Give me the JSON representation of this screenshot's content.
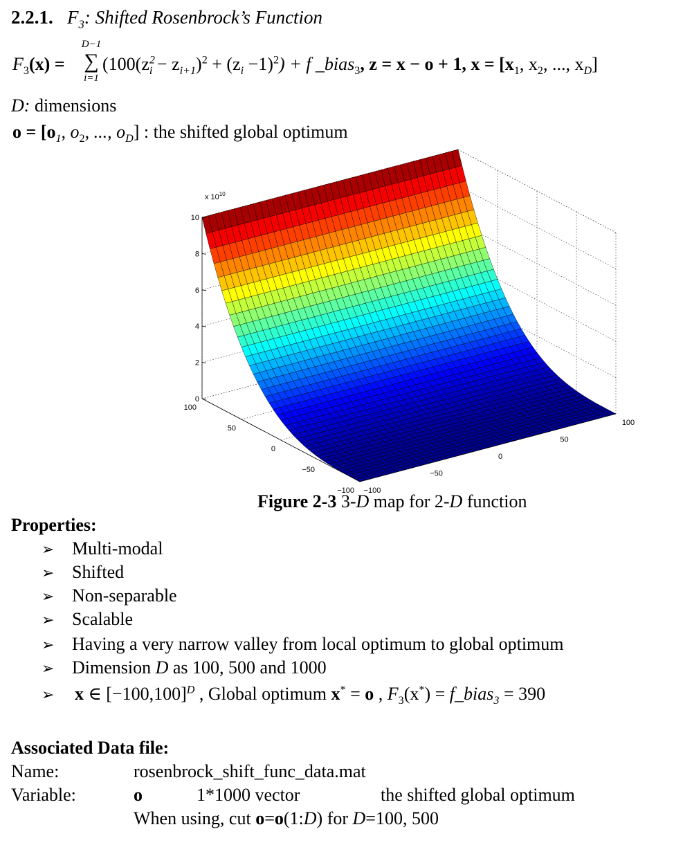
{
  "section": {
    "number": "2.2.1.",
    "func_sym": "F",
    "func_sub": "3",
    "title_rest": ": Shifted Rosenbrock’s Function"
  },
  "formula": {
    "lhs": "F",
    "lhs_sub": "3",
    "lhs_arg": "(x) =",
    "sum_upper": "D−1",
    "sum_lower": "i=1",
    "body": "(100(z",
    "body_sup": "2",
    "body_sub_i": "i",
    "body_mid": " − z",
    "body_sub_i1": "i+1",
    "body_close": ")",
    "body_sq": "2",
    "body_plus": " + (z",
    "body_sub_i2": "i",
    "body_minus1": " −1)",
    "body_sq2": "2",
    "body_end": ") + f _bias",
    "bias_sub": "3",
    "tail": ",  z = x − o + 1,  x = [x",
    "x1": "1",
    "comma2": ", x",
    "x2": "2",
    "dots": ", ..., x",
    "xD": "D",
    "closebr": "]"
  },
  "def_D": {
    "sym": "D:",
    "text": " dimensions"
  },
  "def_o": {
    "lhs": "o = [o",
    "s1": "1",
    "c2": ", o",
    "s2": "2",
    "dots": ", ..., o",
    "sD": "D",
    "rest": "] : the shifted global optimum"
  },
  "chart_data": {
    "type": "surface3d",
    "title": "",
    "z_multiplier_label": "x 10",
    "z_multiplier_exp": "10",
    "z_ticks": [
      "0",
      "2",
      "4",
      "6",
      "8",
      "10"
    ],
    "x_ticks": [
      "−100",
      "−50",
      "0",
      "50",
      "100"
    ],
    "y_ticks": [
      "−100",
      "−50",
      "0",
      "50",
      "100"
    ],
    "xlim": [
      -100,
      100
    ],
    "ylim": [
      -100,
      100
    ],
    "zlim": [
      0,
      10
    ],
    "colormap": [
      "#00008f",
      "#0000ff",
      "#0080ff",
      "#00ffff",
      "#80ff80",
      "#ffff00",
      "#ff8000",
      "#ff0000",
      "#800000"
    ]
  },
  "figure_caption": {
    "label": "Figure 2-3",
    "text_a": " 3-",
    "D1": "D",
    "text_b": " map for 2-",
    "D2": "D",
    "text_c": " function"
  },
  "properties": {
    "heading": "Properties:",
    "bullet_glyph": "➢",
    "items": [
      "Multi-modal",
      "Shifted",
      "Non-separable",
      "Scalable",
      "Having a very narrow valley from local optimum to global optimum"
    ],
    "dim_item": {
      "a": "Dimension ",
      "D": "D",
      "b": " as 100, 500 and 1000"
    },
    "domain_item": {
      "x": "x",
      "in": " ∈ [−100,100]",
      "supD": "D",
      "c": " , Global optimum ",
      "xstar": "x",
      "star": "*",
      "eq": " = ",
      "o": "o",
      "c2": " ,  F",
      "f_sub": "3",
      "arg": "(x",
      "star2": "*",
      "arg2": ") = ",
      "bias": "f_bias",
      "bias_sub": "3",
      "val": " = 390"
    }
  },
  "data_file": {
    "heading": "Associated Data file:",
    "name_label": "Name:",
    "name_value": "rosenbrock_shift_func_data.mat",
    "var_label": "Variable:",
    "var_name": "o",
    "var_size": "1*1000 vector",
    "var_desc": "the shifted global optimum",
    "usage_a": "When using, cut ",
    "usage_o1": "o",
    "usage_eq": "=",
    "usage_o2": "o",
    "usage_b": "(1:",
    "usage_D": "D",
    "usage_c": ") for ",
    "usage_D2": "D",
    "usage_d": "=100, 500"
  }
}
